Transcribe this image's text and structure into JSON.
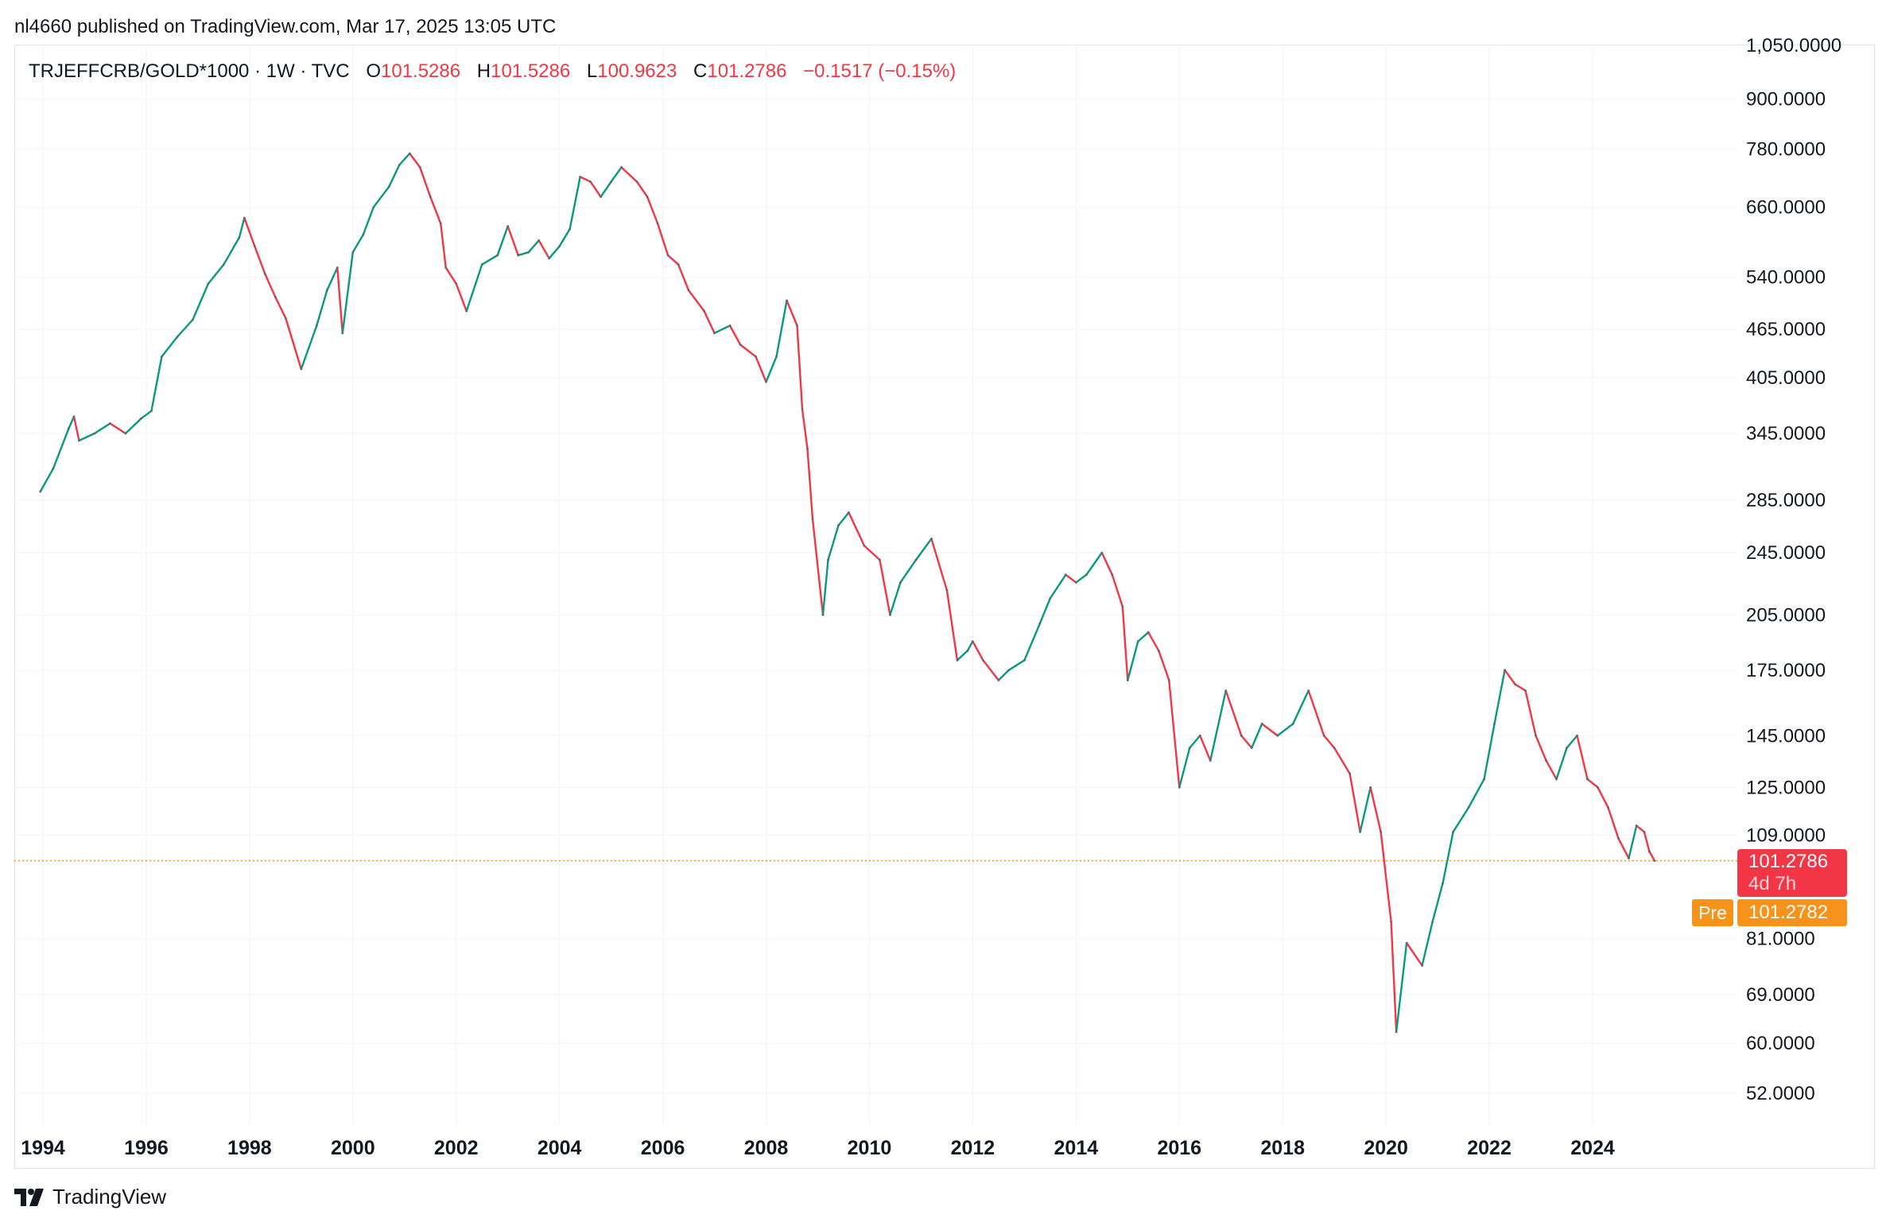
{
  "header": {
    "published": "nl4660 published on TradingView.com, Mar 17, 2025 13:05 UTC"
  },
  "legend": {
    "symbol": "TRJEFFCRB/GOLD*1000 · 1W · TVC",
    "open_label": "O",
    "open": "101.5286",
    "high_label": "H",
    "high": "101.5286",
    "low_label": "L",
    "low": "100.9623",
    "close_label": "C",
    "close": "101.2786",
    "change": "−0.1517 (−0.15%)"
  },
  "price_tag": {
    "price": "101.2786",
    "countdown": "4d 7h"
  },
  "pre_market": {
    "label": "Pre",
    "price": "101.2782"
  },
  "brand": {
    "name": "TradingView"
  },
  "colors": {
    "up": "#089981",
    "down": "#f23645",
    "pre": "#f7931a",
    "grid": "#f0f3fa"
  },
  "chart_data": {
    "type": "line",
    "title": "TRJEFFCRB/GOLD*1000 · 1W · TVC",
    "scale": "log",
    "y_ticks": [
      "1,050.0000",
      "900.0000",
      "780.0000",
      "660.0000",
      "540.0000",
      "465.0000",
      "405.0000",
      "345.0000",
      "285.0000",
      "245.0000",
      "205.0000",
      "175.0000",
      "145.0000",
      "125.0000",
      "109.0000",
      "81.0000",
      "69.0000",
      "60.0000",
      "52.0000"
    ],
    "y_tick_values": [
      1050,
      900,
      780,
      660,
      540,
      465,
      405,
      345,
      285,
      245,
      205,
      175,
      145,
      125,
      109,
      81,
      69,
      60,
      52
    ],
    "x_tick_labels": [
      "1994",
      "1996",
      "1998",
      "2000",
      "2002",
      "2004",
      "2006",
      "2008",
      "2010",
      "2012",
      "2014",
      "2016",
      "2018",
      "2020",
      "2022",
      "2024"
    ],
    "x_tick_values": [
      1994,
      1996,
      1998,
      2000,
      2002,
      2004,
      2006,
      2008,
      2010,
      2012,
      2014,
      2016,
      2018,
      2020,
      2022,
      2024
    ],
    "xlim": [
      1993.95,
      2025.2
    ],
    "last_price": 101.2786,
    "series": [
      {
        "name": "TRJEFFCRB/GOLD*1000",
        "points": [
          [
            1993.95,
            292
          ],
          [
            1994.2,
            312
          ],
          [
            1994.5,
            350
          ],
          [
            1994.6,
            362
          ],
          [
            1994.7,
            338
          ],
          [
            1995.0,
            345
          ],
          [
            1995.3,
            355
          ],
          [
            1995.6,
            345
          ],
          [
            1995.9,
            360
          ],
          [
            1996.1,
            368
          ],
          [
            1996.3,
            430
          ],
          [
            1996.6,
            455
          ],
          [
            1996.9,
            478
          ],
          [
            1997.2,
            530
          ],
          [
            1997.5,
            560
          ],
          [
            1997.8,
            605
          ],
          [
            1997.9,
            640
          ],
          [
            1998.1,
            590
          ],
          [
            1998.3,
            545
          ],
          [
            1998.5,
            510
          ],
          [
            1998.7,
            480
          ],
          [
            1999.0,
            415
          ],
          [
            1999.3,
            470
          ],
          [
            1999.5,
            520
          ],
          [
            1999.7,
            555
          ],
          [
            1999.8,
            460
          ],
          [
            2000.0,
            580
          ],
          [
            2000.2,
            610
          ],
          [
            2000.4,
            660
          ],
          [
            2000.7,
            700
          ],
          [
            2000.9,
            745
          ],
          [
            2001.1,
            770
          ],
          [
            2001.3,
            740
          ],
          [
            2001.5,
            680
          ],
          [
            2001.7,
            630
          ],
          [
            2001.8,
            555
          ],
          [
            2002.0,
            530
          ],
          [
            2002.2,
            490
          ],
          [
            2002.5,
            560
          ],
          [
            2002.8,
            575
          ],
          [
            2003.0,
            625
          ],
          [
            2003.2,
            575
          ],
          [
            2003.4,
            580
          ],
          [
            2003.6,
            600
          ],
          [
            2003.8,
            570
          ],
          [
            2004.0,
            590
          ],
          [
            2004.2,
            620
          ],
          [
            2004.4,
            720
          ],
          [
            2004.6,
            710
          ],
          [
            2004.8,
            680
          ],
          [
            2005.0,
            710
          ],
          [
            2005.2,
            740
          ],
          [
            2005.5,
            710
          ],
          [
            2005.7,
            680
          ],
          [
            2005.9,
            630
          ],
          [
            2006.1,
            575
          ],
          [
            2006.3,
            560
          ],
          [
            2006.5,
            520
          ],
          [
            2006.8,
            490
          ],
          [
            2007.0,
            460
          ],
          [
            2007.3,
            470
          ],
          [
            2007.5,
            445
          ],
          [
            2007.8,
            430
          ],
          [
            2008.0,
            400
          ],
          [
            2008.2,
            430
          ],
          [
            2008.4,
            505
          ],
          [
            2008.6,
            470
          ],
          [
            2008.7,
            370
          ],
          [
            2008.8,
            330
          ],
          [
            2008.9,
            270
          ],
          [
            2009.1,
            205
          ],
          [
            2009.2,
            240
          ],
          [
            2009.4,
            265
          ],
          [
            2009.6,
            275
          ],
          [
            2009.9,
            250
          ],
          [
            2010.2,
            240
          ],
          [
            2010.4,
            205
          ],
          [
            2010.6,
            225
          ],
          [
            2010.9,
            240
          ],
          [
            2011.2,
            255
          ],
          [
            2011.5,
            220
          ],
          [
            2011.7,
            180
          ],
          [
            2011.9,
            185
          ],
          [
            2012.0,
            190
          ],
          [
            2012.2,
            180
          ],
          [
            2012.5,
            170
          ],
          [
            2012.7,
            175
          ],
          [
            2013.0,
            180
          ],
          [
            2013.3,
            200
          ],
          [
            2013.5,
            215
          ],
          [
            2013.8,
            230
          ],
          [
            2014.0,
            225
          ],
          [
            2014.2,
            230
          ],
          [
            2014.5,
            245
          ],
          [
            2014.7,
            230
          ],
          [
            2014.9,
            210
          ],
          [
            2015.0,
            170
          ],
          [
            2015.2,
            190
          ],
          [
            2015.4,
            195
          ],
          [
            2015.6,
            185
          ],
          [
            2015.8,
            170
          ],
          [
            2016.0,
            125
          ],
          [
            2016.2,
            140
          ],
          [
            2016.4,
            145
          ],
          [
            2016.6,
            135
          ],
          [
            2016.9,
            165
          ],
          [
            2017.2,
            145
          ],
          [
            2017.4,
            140
          ],
          [
            2017.6,
            150
          ],
          [
            2017.9,
            145
          ],
          [
            2018.2,
            150
          ],
          [
            2018.5,
            165
          ],
          [
            2018.8,
            145
          ],
          [
            2019.0,
            140
          ],
          [
            2019.3,
            130
          ],
          [
            2019.5,
            110
          ],
          [
            2019.7,
            125
          ],
          [
            2019.9,
            110
          ],
          [
            2020.1,
            85
          ],
          [
            2020.2,
            62
          ],
          [
            2020.4,
            80
          ],
          [
            2020.7,
            75
          ],
          [
            2020.9,
            85
          ],
          [
            2021.1,
            95
          ],
          [
            2021.3,
            110
          ],
          [
            2021.6,
            118
          ],
          [
            2021.9,
            128
          ],
          [
            2022.1,
            150
          ],
          [
            2022.3,
            175
          ],
          [
            2022.5,
            168
          ],
          [
            2022.7,
            165
          ],
          [
            2022.9,
            145
          ],
          [
            2023.1,
            135
          ],
          [
            2023.3,
            128
          ],
          [
            2023.5,
            140
          ],
          [
            2023.7,
            145
          ],
          [
            2023.9,
            128
          ],
          [
            2024.1,
            125
          ],
          [
            2024.3,
            118
          ],
          [
            2024.5,
            108
          ],
          [
            2024.7,
            102
          ],
          [
            2024.85,
            112
          ],
          [
            2025.0,
            110
          ],
          [
            2025.1,
            104
          ],
          [
            2025.2,
            101.28
          ]
        ]
      }
    ]
  }
}
